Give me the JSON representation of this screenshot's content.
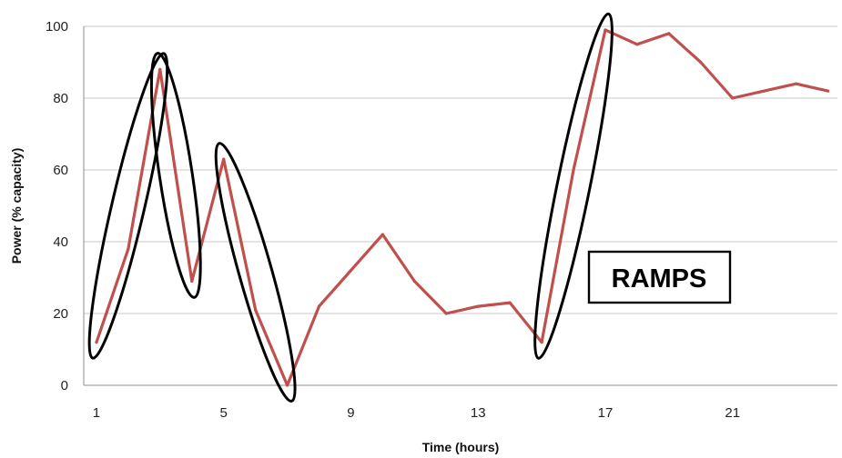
{
  "chart_data": {
    "type": "line",
    "title": "",
    "xlabel": "Time (hours)",
    "ylabel": "Power (% capacity)",
    "xlim": [
      0.6,
      24.3
    ],
    "ylim": [
      0,
      100
    ],
    "x_ticks": [
      1,
      5,
      9,
      13,
      17,
      21
    ],
    "y_ticks": [
      0,
      20,
      40,
      60,
      80,
      100
    ],
    "grid": true,
    "legend": "none",
    "series": [
      {
        "color": "#c0504d",
        "x": [
          1,
          2,
          3,
          4,
          5,
          6,
          7,
          8,
          9,
          10,
          11,
          12,
          13,
          14,
          15,
          16,
          17,
          18,
          19,
          20,
          21,
          22,
          23,
          24
        ],
        "y": [
          12,
          38,
          88,
          29,
          63,
          21,
          0,
          22,
          32,
          42,
          29,
          20,
          22,
          23,
          12,
          60,
          99,
          95,
          98,
          90,
          80,
          82,
          84,
          82
        ]
      }
    ],
    "ramp_highlights": [
      {
        "x_from": 1,
        "x_to": 3
      },
      {
        "x_from": 3,
        "x_to": 4
      },
      {
        "x_from": 5,
        "x_to": 7
      },
      {
        "x_from": 15,
        "x_to": 17
      }
    ],
    "annotations": [
      {
        "text": "RAMPS",
        "box": true
      }
    ],
    "colors": {
      "series": "#c0504d",
      "highlight": "#000000",
      "grid": "#c8c8c8",
      "axis": "#8c8c8c"
    }
  }
}
